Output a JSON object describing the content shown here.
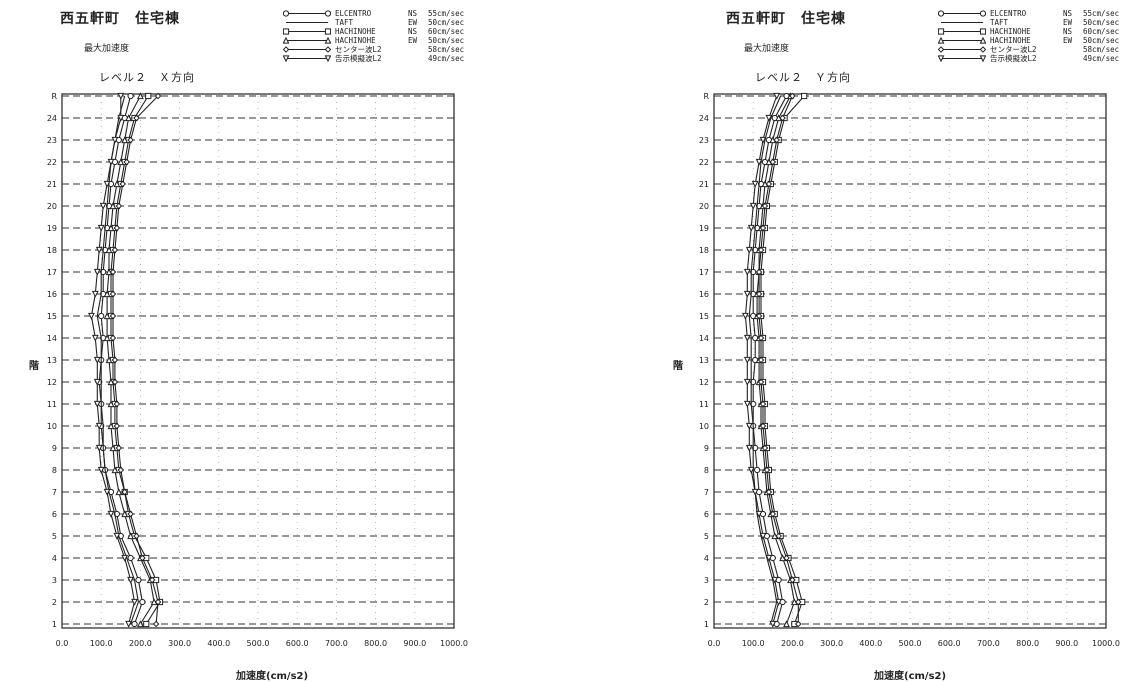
{
  "chart_data": [
    {
      "type": "line",
      "title": "西五軒町　住宅棟",
      "subtitle": "最大加速度",
      "case_label": "レベル２　Ｘ方向",
      "xlabel": "加速度(cm/s2)",
      "ylabel": "階",
      "xlim": [
        0,
        1000
      ],
      "x_ticks": [
        "0.0",
        "100.0",
        "200.0",
        "300.0",
        "400.0",
        "500.0",
        "600.0",
        "700.0",
        "800.0",
        "900.0",
        "1000.0"
      ],
      "floors": [
        "1",
        "2",
        "3",
        "4",
        "5",
        "6",
        "7",
        "8",
        "9",
        "10",
        "11",
        "12",
        "13",
        "14",
        "15",
        "16",
        "17",
        "18",
        "19",
        "20",
        "21",
        "22",
        "23",
        "24",
        "R"
      ],
      "grid": true,
      "legend_position": "top-right",
      "series": [
        {
          "name": "ELCENTRO",
          "dir": "NS",
          "vel": "55cm/sec",
          "marker": "circle",
          "values": [
            185,
            205,
            195,
            175,
            150,
            140,
            125,
            110,
            105,
            100,
            100,
            95,
            100,
            105,
            100,
            105,
            105,
            110,
            115,
            120,
            125,
            135,
            145,
            160,
            175
          ]
        },
        {
          "name": "TAFT",
          "dir": "EW",
          "vel": "50cm/sec",
          "marker": "none",
          "values": [
            175,
            195,
            185,
            165,
            145,
            135,
            120,
            110,
            105,
            105,
            100,
            100,
            100,
            100,
            90,
            100,
            100,
            105,
            110,
            115,
            120,
            125,
            135,
            145,
            160
          ]
        },
        {
          "name": "HACHINOHE",
          "dir": "NS",
          "vel": "60cm/sec",
          "marker": "square",
          "values": [
            215,
            250,
            240,
            215,
            185,
            170,
            160,
            145,
            140,
            135,
            135,
            130,
            130,
            125,
            125,
            125,
            125,
            130,
            135,
            140,
            150,
            160,
            170,
            185,
            220
          ]
        },
        {
          "name": "HACHINOHE",
          "dir": "EW",
          "vel": "50cm/sec",
          "marker": "triangle",
          "values": [
            200,
            235,
            225,
            200,
            175,
            160,
            145,
            135,
            130,
            125,
            125,
            125,
            120,
            115,
            115,
            115,
            120,
            120,
            125,
            130,
            140,
            150,
            160,
            170,
            200
          ]
        },
        {
          "name": "センター波L2",
          "dir": "",
          "vel": "58cm/sec",
          "marker": "diamond",
          "values": [
            240,
            245,
            230,
            205,
            190,
            175,
            160,
            150,
            145,
            140,
            140,
            135,
            135,
            130,
            130,
            130,
            130,
            135,
            140,
            145,
            155,
            165,
            175,
            190,
            245
          ]
        },
        {
          "name": "告示模擬波L2",
          "dir": "",
          "vel": "49cm/sec",
          "marker": "triangle-down",
          "values": [
            170,
            185,
            175,
            160,
            140,
            125,
            115,
            100,
            95,
            95,
            90,
            90,
            90,
            85,
            75,
            85,
            90,
            95,
            100,
            105,
            115,
            125,
            135,
            150,
            150
          ]
        }
      ]
    },
    {
      "type": "line",
      "title": "西五軒町　住宅棟",
      "subtitle": "最大加速度",
      "case_label": "レベル２　Ｙ方向",
      "xlabel": "加速度(cm/s2)",
      "ylabel": "階",
      "xlim": [
        0,
        1000
      ],
      "x_ticks": [
        "0.0",
        "100.0",
        "200.0",
        "300.0",
        "400.0",
        "500.0",
        "600.0",
        "700.0",
        "800.0",
        "900.0",
        "1000.0"
      ],
      "floors": [
        "1",
        "2",
        "3",
        "4",
        "5",
        "6",
        "7",
        "8",
        "9",
        "10",
        "11",
        "12",
        "13",
        "14",
        "15",
        "16",
        "17",
        "18",
        "19",
        "20",
        "21",
        "22",
        "23",
        "24",
        "R"
      ],
      "grid": true,
      "legend_position": "top-right",
      "series": [
        {
          "name": "ELCENTRO",
          "dir": "NS",
          "vel": "55cm/sec",
          "marker": "circle",
          "values": [
            160,
            175,
            165,
            150,
            135,
            125,
            115,
            110,
            105,
            100,
            100,
            100,
            105,
            105,
            100,
            100,
            100,
            105,
            110,
            115,
            120,
            130,
            140,
            155,
            185
          ]
        },
        {
          "name": "TAFT",
          "dir": "EW",
          "vel": "50cm/sec",
          "marker": "none",
          "values": [
            145,
            160,
            150,
            135,
            120,
            110,
            105,
            100,
            100,
            100,
            95,
            95,
            95,
            95,
            90,
            95,
            95,
            100,
            105,
            110,
            115,
            120,
            130,
            145,
            170
          ]
        },
        {
          "name": "HACHINOHE",
          "dir": "NS",
          "vel": "60cm/sec",
          "marker": "square",
          "values": [
            205,
            225,
            210,
            190,
            170,
            155,
            145,
            140,
            135,
            130,
            130,
            125,
            125,
            125,
            120,
            120,
            120,
            125,
            130,
            135,
            145,
            155,
            165,
            180,
            230
          ]
        },
        {
          "name": "HACHINOHE",
          "dir": "EW",
          "vel": "50cm/sec",
          "marker": "triangle",
          "values": [
            185,
            205,
            195,
            175,
            155,
            145,
            135,
            130,
            125,
            120,
            120,
            115,
            115,
            115,
            110,
            110,
            115,
            115,
            120,
            125,
            130,
            140,
            150,
            165,
            195
          ]
        },
        {
          "name": "センター波L2",
          "dir": "",
          "vel": "58cm/sec",
          "marker": "diamond",
          "values": [
            215,
            215,
            200,
            185,
            165,
            150,
            140,
            135,
            130,
            125,
            125,
            120,
            120,
            120,
            115,
            115,
            115,
            120,
            125,
            130,
            140,
            150,
            160,
            175,
            200
          ]
        },
        {
          "name": "告示模擬波L2",
          "dir": "",
          "vel": "49cm/sec",
          "marker": "triangle-down",
          "values": [
            150,
            165,
            155,
            140,
            125,
            115,
            105,
            95,
            90,
            90,
            85,
            85,
            85,
            85,
            80,
            85,
            85,
            90,
            95,
            100,
            105,
            115,
            125,
            140,
            160
          ]
        }
      ]
    }
  ],
  "colors": {
    "ink": "#222222",
    "grid": "#333333",
    "gridFaint": "#999999"
  }
}
